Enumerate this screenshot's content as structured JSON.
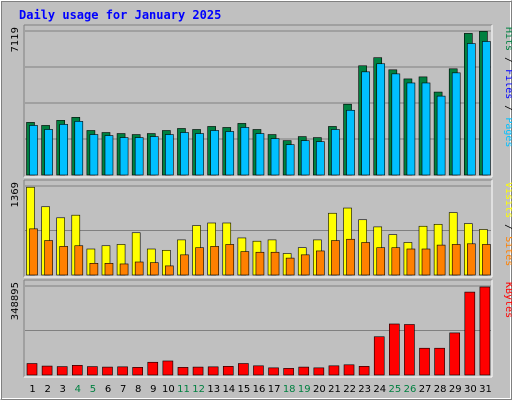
{
  "chart_data": {
    "type": "bar",
    "title": "Daily usage for January 2025",
    "categories": [
      "1",
      "2",
      "3",
      "4",
      "5",
      "6",
      "7",
      "8",
      "9",
      "10",
      "11",
      "12",
      "13",
      "14",
      "15",
      "16",
      "17",
      "18",
      "19",
      "20",
      "21",
      "22",
      "23",
      "24",
      "25",
      "26",
      "27",
      "28",
      "29",
      "30",
      "31"
    ],
    "weekend_days": [
      "4",
      "5",
      "11",
      "12",
      "18",
      "19",
      "25",
      "26"
    ],
    "panels": [
      {
        "id": "hits",
        "max_label": "7119",
        "ylim": [
          0,
          7119
        ],
        "side_labels": [
          "Pages",
          "Files",
          "Hits"
        ],
        "series": [
          {
            "name": "Hits",
            "color": "#008040",
            "values": [
              2600,
              2450,
              2700,
              2850,
              2200,
              2100,
              2050,
              2000,
              2050,
              2200,
              2300,
              2250,
              2400,
              2350,
              2550,
              2250,
              2000,
              1700,
              1900,
              1850,
              2400,
              3500,
              5400,
              5800,
              5200,
              4750,
              4850,
              4100,
              5250,
              7000,
              7100
            ]
          },
          {
            "name": "Files",
            "color": "#00C0FF",
            "values": [
              2450,
              2250,
              2500,
              2650,
              2000,
              1950,
              1850,
              1850,
              1900,
              2000,
              2100,
              2050,
              2200,
              2150,
              2350,
              2050,
              1800,
              1500,
              1700,
              1650,
              2250,
              3200,
              5100,
              5500,
              5000,
              4550,
              4550,
              3900,
              5050,
              6500,
              6600
            ]
          },
          {
            "name": "Pages",
            "color": "#00C0FF",
            "values": [
              0,
              0,
              0,
              0,
              0,
              0,
              0,
              0,
              0,
              0,
              0,
              0,
              0,
              0,
              0,
              0,
              0,
              0,
              0,
              0,
              0,
              0,
              0,
              0,
              0,
              0,
              0,
              0,
              0,
              0,
              0
            ]
          }
        ]
      },
      {
        "id": "visits",
        "max_label": "1369",
        "ylim": [
          0,
          1369
        ],
        "side_labels": [
          "Sites",
          "Visits"
        ],
        "series": [
          {
            "name": "Visits",
            "color": "#FFFF00",
            "values": [
              1350,
              1050,
              880,
              920,
              400,
              450,
              470,
              650,
              400,
              380,
              540,
              760,
              800,
              800,
              570,
              520,
              540,
              330,
              420,
              540,
              950,
              1030,
              850,
              740,
              620,
              500,
              750,
              780,
              960,
              790,
              700
            ]
          },
          {
            "name": "Sites",
            "color": "#FF8000",
            "values": [
              710,
              530,
              440,
              450,
              180,
              180,
              170,
              200,
              190,
              140,
              310,
              420,
              440,
              470,
              360,
              350,
              350,
              260,
              310,
              370,
              530,
              550,
              500,
              420,
              420,
              400,
              400,
              460,
              470,
              480,
              470
            ]
          }
        ]
      },
      {
        "id": "kbytes",
        "max_label": "348895",
        "ylim": [
          0,
          348895
        ],
        "side_labels": [
          "KBytes"
        ],
        "series": [
          {
            "name": "KBytes",
            "color": "#FF0000",
            "values": [
              45000,
              35000,
              33000,
              38000,
              33000,
              31000,
              32000,
              30000,
              50000,
              55000,
              30000,
              31000,
              32000,
              34000,
              45000,
              36000,
              28000,
              26000,
              31000,
              28000,
              36000,
              40000,
              34000,
              150000,
              200000,
              198000,
              105000,
              105000,
              165000,
              325000,
              345000
            ]
          }
        ]
      }
    ]
  },
  "colors": {
    "background": "#C0C0C0",
    "plot_background": "#C0C0C0",
    "grid": "#808080",
    "title_text": "#0000FF",
    "weekday_label": "#000000",
    "weekend_label": "#008040",
    "pages_label": "#00C0FF",
    "files_label": "#0000FF",
    "hits_label": "#008040",
    "sites_label": "#FF8000",
    "visits_label": "#FFFF00",
    "kbytes_label": "#FF0000"
  }
}
